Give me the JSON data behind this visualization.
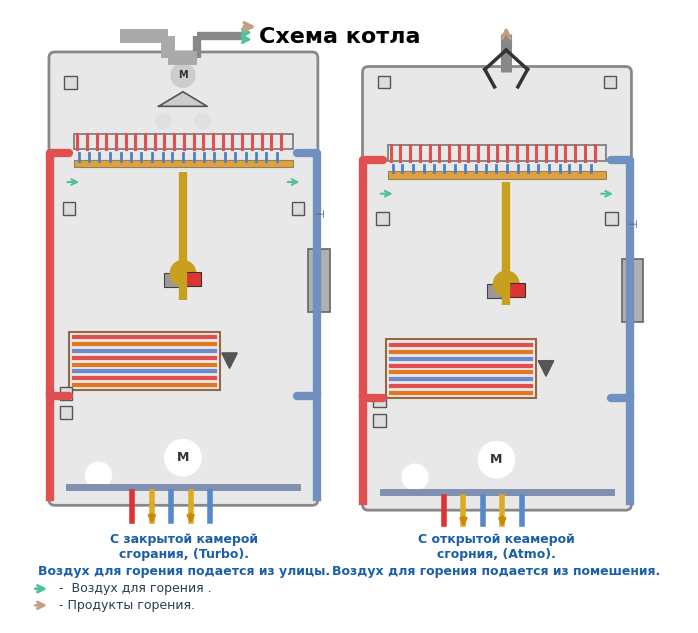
{
  "title": "Схема котла",
  "title_fontsize": 16,
  "title_color": "#000000",
  "bg_color": "#ffffff",
  "fig_width": 6.98,
  "fig_height": 6.33,
  "left_caption1": "С закрытой камерой",
  "left_caption2": "сгорания, (Turbo).",
  "left_caption3": "Воздух для горения подается из улицы.",
  "right_caption1": "С открытой кeамерой",
  "right_caption2": "сгорния, (Atmo).",
  "right_caption3": "Воздух для горения подается из помешения.",
  "legend1": " -  Воздух для горения .",
  "legend2": " - Продукты горения.",
  "text_color": "#1a5fa8",
  "legend_color": "#2c3e50",
  "boiler_box_color": "#e8e8e8",
  "red_pipe_color": "#e05050",
  "blue_pipe_color": "#7090c0",
  "gold_pipe_color": "#c8a020",
  "teal_arrow_color": "#50c0a0",
  "tan_arrow_color": "#c0a080",
  "burner_blue_color": "#5080c0",
  "burner_orange_color": "#e0a040",
  "box_edge_color": "#888888",
  "sensor_color": "#dddddd",
  "valve_gray_color": "#999999",
  "expansion_vessel_color": "#b0b0b0",
  "pump_edge_color": "#555555",
  "pipe_colors_shx": [
    "#e05050",
    "#e07820",
    "#7088cc",
    "#e05050",
    "#e07820",
    "#7088cc",
    "#e05050",
    "#e07820"
  ],
  "bottom_pipe_colors": [
    "#dd3333",
    "#ddaa22",
    "#5588cc",
    "#ddaa22",
    "#5588cc"
  ]
}
